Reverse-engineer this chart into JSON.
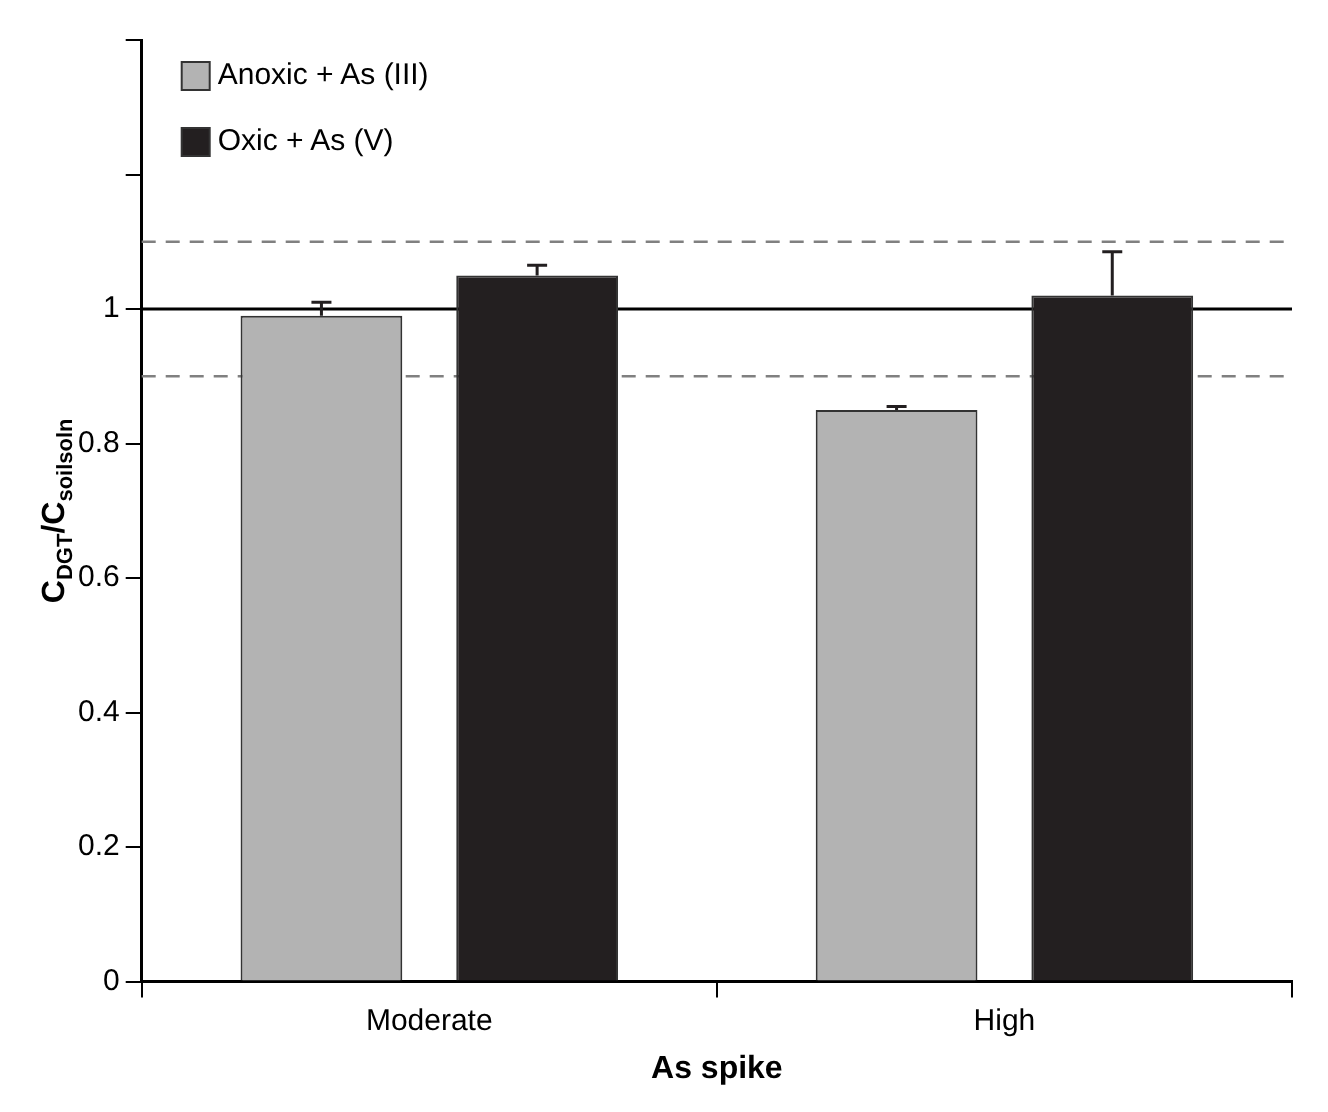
{
  "chart_data": {
    "type": "bar",
    "xlabel": "As spike",
    "ylabel": "C$_{DGT}$/C$_{soilsoln}$",
    "categories": [
      "Moderate",
      "High"
    ],
    "series": [
      {
        "name": "Anoxic + As (III)",
        "color": "#b3b3b3",
        "values": [
          0.99,
          0.85
        ],
        "errors": [
          [
            0.99,
            1.01
          ],
          [
            0.85,
            0.855
          ]
        ]
      },
      {
        "name": "Oxic + As (V)",
        "color": "#231f20",
        "values": [
          1.05,
          1.02
        ],
        "errors": [
          [
            1.05,
            1.065
          ],
          [
            1.02,
            1.085
          ]
        ]
      }
    ],
    "ylim": [
      0,
      1.4
    ],
    "yticks": [
      0,
      0.2,
      0.4,
      0.6,
      0.8,
      1,
      {
        "value": 1.2,
        "label": null
      },
      {
        "value": 1.4,
        "label": null
      }
    ],
    "ref_lines": [
      {
        "axis": "y",
        "value": 1,
        "color": "#000000",
        "line_style": "solid"
      },
      {
        "axis": "y",
        "value": 1.1,
        "color": "#808080",
        "line_style": "dashed"
      },
      {
        "axis": "y",
        "value": 0.9,
        "color": "#808080",
        "line_style": "dashed"
      }
    ],
    "grid": false,
    "legend": "top left"
  }
}
